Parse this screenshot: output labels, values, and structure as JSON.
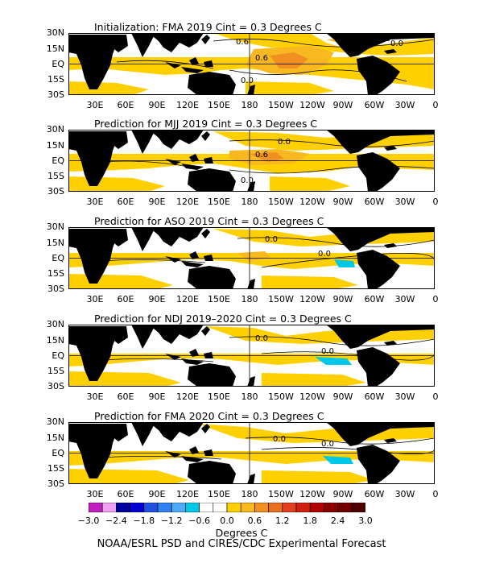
{
  "panels": [
    {
      "title": "Initialization: FMA 2019   Cint = 0.3 Degrees C"
    },
    {
      "title": "Prediction for MJJ 2019   Cint = 0.3 Degrees C"
    },
    {
      "title": "Prediction for ASO 2019   Cint = 0.3 Degrees C"
    },
    {
      "title": "Prediction for NDJ 2019–2020   Cint = 0.3 Degrees C"
    },
    {
      "title": "Prediction for FMA 2020   Cint = 0.3 Degrees C"
    }
  ],
  "lat_labels": [
    "30N",
    "15N",
    "EQ",
    "15S",
    "30S"
  ],
  "lon_labels": [
    "30E",
    "60E",
    "90E",
    "120E",
    "150E",
    "180",
    "150W",
    "120W",
    "90W",
    "60W",
    "30W",
    "0"
  ],
  "contour_labels": [
    [
      "0.6",
      "0.6",
      "0.0",
      "0.6",
      "0.0"
    ],
    [
      "0.0",
      "0.6",
      "0.0"
    ],
    [
      "0.0",
      "0.0"
    ],
    [
      "0.0",
      "0.0"
    ],
    [
      "0.0",
      "0.0"
    ]
  ],
  "colorbar": {
    "labels": [
      "−3.0",
      "−2.4",
      "−1.8",
      "−1.2",
      "−0.6",
      "0.0",
      "0.6",
      "1.2",
      "1.8",
      "2.4",
      "3.0"
    ],
    "colors": [
      "#c020c0",
      "#f0a0f0",
      "#0000a0",
      "#0000d0",
      "#2050e0",
      "#3080f0",
      "#50a8f8",
      "#00c8e8",
      "#ffffff",
      "#ffffff",
      "#ffd000",
      "#f8b820",
      "#f09020",
      "#e87020",
      "#e04020",
      "#d02010",
      "#b00000",
      "#8c0000",
      "#700000",
      "#500000"
    ],
    "unit": "Degrees C"
  },
  "footer": "NOAA/ESRL PSD and CIRES/CDC Experimental Forecast",
  "colors": {
    "land": "#000000",
    "warm": "#ffd000",
    "warmer": "#f8b820",
    "warmest": "#f09020",
    "cool": "#00c8e8"
  }
}
